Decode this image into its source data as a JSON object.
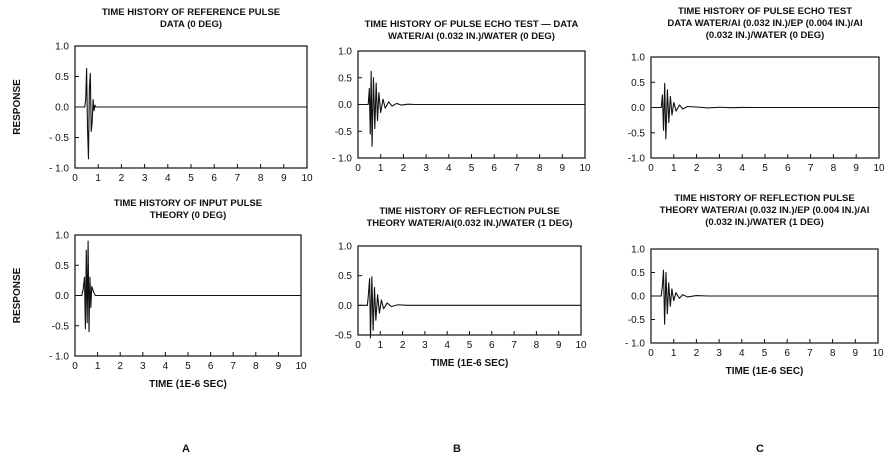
{
  "figure": {
    "panel_labels": [
      "A",
      "B",
      "C"
    ]
  },
  "chart_data": [
    {
      "id": "A-top",
      "type": "line",
      "title_lines": [
        "TIME HISTORY OF REFERENCE PULSE",
        "DATA (0 DEG)"
      ],
      "ylabel": "RESPONSE",
      "xlabel": "",
      "xlim": [
        0,
        10
      ],
      "ylim": [
        -1.0,
        1.0
      ],
      "x_ticks": [
        "0",
        "1",
        "2",
        "3",
        "4",
        "5",
        "6",
        "7",
        "8",
        "9",
        "10"
      ],
      "y_ticks": [
        "1.0",
        "0.5",
        "0.0",
        "- 0.5",
        "- 1.0"
      ],
      "y_tick_values": [
        1.0,
        0.5,
        0.0,
        -0.5,
        -1.0
      ],
      "grid": false,
      "series": [
        {
          "points": [
            [
              0,
              0
            ],
            [
              0.42,
              0
            ],
            [
              0.46,
              0.12
            ],
            [
              0.5,
              0.63
            ],
            [
              0.54,
              -0.35
            ],
            [
              0.58,
              -0.85
            ],
            [
              0.62,
              0.3
            ],
            [
              0.66,
              0.55
            ],
            [
              0.7,
              -0.4
            ],
            [
              0.74,
              -0.25
            ],
            [
              0.78,
              0.12
            ],
            [
              0.82,
              -0.06
            ],
            [
              0.86,
              0.03
            ],
            [
              0.9,
              0
            ],
            [
              10,
              0
            ]
          ]
        }
      ]
    },
    {
      "id": "A-bottom",
      "type": "line",
      "title_lines": [
        "TIME HISTORY OF INPUT PULSE",
        "THEORY (0 DEG)"
      ],
      "ylabel": "RESPONSE",
      "xlabel": "TIME (1E-6 SEC)",
      "xlim": [
        0,
        10
      ],
      "ylim": [
        -1.0,
        1.0
      ],
      "x_ticks": [
        "0",
        "1",
        "2",
        "3",
        "4",
        "5",
        "6",
        "7",
        "8",
        "9",
        "10"
      ],
      "y_ticks": [
        "1.0",
        "0.5",
        "0.0",
        "-0.5",
        "- 1.0"
      ],
      "y_tick_values": [
        1.0,
        0.5,
        0.0,
        -0.5,
        -1.0
      ],
      "grid": false,
      "series": [
        {
          "points": [
            [
              0,
              0
            ],
            [
              0.3,
              0
            ],
            [
              0.36,
              0.1
            ],
            [
              0.42,
              0.3
            ],
            [
              0.46,
              -0.55
            ],
            [
              0.5,
              0.75
            ],
            [
              0.54,
              -0.45
            ],
            [
              0.58,
              0.9
            ],
            [
              0.62,
              -0.6
            ],
            [
              0.66,
              0.3
            ],
            [
              0.7,
              -0.2
            ],
            [
              0.74,
              0.15
            ],
            [
              0.8,
              0.08
            ],
            [
              0.86,
              0.03
            ],
            [
              0.9,
              0
            ],
            [
              10,
              0
            ]
          ]
        }
      ]
    },
    {
      "id": "B-top",
      "type": "line",
      "title_lines": [
        "TIME HISTORY OF PULSE ECHO TEST — DATA",
        "WATER/AI (0.032 IN.)/WATER (0 DEG)"
      ],
      "ylabel": "",
      "xlabel": "",
      "xlim": [
        0,
        10
      ],
      "ylim": [
        -1.0,
        1.0
      ],
      "x_ticks": [
        "0",
        "1",
        "2",
        "3",
        "4",
        "5",
        "6",
        "7",
        "8",
        "9",
        "10"
      ],
      "y_ticks": [
        "1.0",
        "0.5",
        "0.0",
        "-0.5",
        "- 1.0"
      ],
      "y_tick_values": [
        1.0,
        0.5,
        0.0,
        -0.5,
        -1.0
      ],
      "grid": false,
      "series": [
        {
          "points": [
            [
              0,
              0
            ],
            [
              0.45,
              0
            ],
            [
              0.5,
              0.3
            ],
            [
              0.54,
              -0.55
            ],
            [
              0.58,
              0.62
            ],
            [
              0.62,
              -0.78
            ],
            [
              0.68,
              0.5
            ],
            [
              0.74,
              -0.45
            ],
            [
              0.8,
              0.4
            ],
            [
              0.86,
              -0.3
            ],
            [
              0.92,
              0.22
            ],
            [
              1.0,
              -0.15
            ],
            [
              1.1,
              0.1
            ],
            [
              1.2,
              -0.07
            ],
            [
              1.35,
              0.05
            ],
            [
              1.5,
              -0.03
            ],
            [
              1.7,
              0.02
            ],
            [
              1.9,
              -0.01
            ],
            [
              2.2,
              0.005
            ],
            [
              2.5,
              0
            ],
            [
              10,
              0
            ]
          ]
        }
      ]
    },
    {
      "id": "B-bottom",
      "type": "line",
      "title_lines": [
        "TIME HISTORY OF REFLECTION PULSE",
        "THEORY WATER/AI(0.032 IN.)/WATER (1 DEG)"
      ],
      "ylabel": "",
      "xlabel": "TIME (1E-6 SEC)",
      "xlim": [
        0,
        10
      ],
      "ylim": [
        -0.5,
        1.0
      ],
      "x_ticks": [
        "0",
        "1",
        "2",
        "3",
        "4",
        "5",
        "6",
        "7",
        "8",
        "9",
        "10"
      ],
      "y_ticks": [
        "1.0",
        "0.5",
        "0.0",
        "-0.5"
      ],
      "y_tick_values": [
        1.0,
        0.5,
        0.0,
        -0.5
      ],
      "grid": false,
      "series": [
        {
          "points": [
            [
              0,
              0
            ],
            [
              0.42,
              0
            ],
            [
              0.46,
              0.15
            ],
            [
              0.52,
              0.45
            ],
            [
              0.56,
              -0.55
            ],
            [
              0.62,
              0.48
            ],
            [
              0.68,
              -0.42
            ],
            [
              0.74,
              0.3
            ],
            [
              0.8,
              -0.25
            ],
            [
              0.88,
              0.18
            ],
            [
              0.96,
              -0.13
            ],
            [
              1.05,
              0.09
            ],
            [
              1.15,
              -0.06
            ],
            [
              1.3,
              0.04
            ],
            [
              1.5,
              -0.02
            ],
            [
              1.8,
              0.01
            ],
            [
              2.2,
              0
            ],
            [
              10,
              0
            ]
          ]
        }
      ]
    },
    {
      "id": "C-top",
      "type": "line",
      "title_lines": [
        "TIME HISTORY OF PULSE ECHO TEST",
        "DATA WATER/AI (0.032 IN.)/EP (0.004 IN.)/AI",
        "(0.032 IN.)/WATER (0 DEG)"
      ],
      "ylabel": "",
      "xlabel": "",
      "xlim": [
        0,
        10
      ],
      "ylim": [
        -1.0,
        1.0
      ],
      "x_ticks": [
        "0",
        "1",
        "2",
        "3",
        "4",
        "5",
        "6",
        "7",
        "8",
        "9",
        "10"
      ],
      "y_ticks": [
        "1.0",
        "0.5",
        "0.0",
        "-0.5",
        "-1.0"
      ],
      "y_tick_values": [
        1.0,
        0.5,
        0.0,
        -0.5,
        -1.0
      ],
      "grid": false,
      "series": [
        {
          "points": [
            [
              0,
              0
            ],
            [
              0.45,
              0
            ],
            [
              0.5,
              0.25
            ],
            [
              0.55,
              -0.45
            ],
            [
              0.6,
              0.48
            ],
            [
              0.65,
              -0.62
            ],
            [
              0.72,
              0.35
            ],
            [
              0.78,
              -0.3
            ],
            [
              0.85,
              0.22
            ],
            [
              0.92,
              -0.15
            ],
            [
              1.0,
              0.1
            ],
            [
              1.1,
              -0.07
            ],
            [
              1.25,
              0.05
            ],
            [
              1.4,
              -0.03
            ],
            [
              1.6,
              0.02
            ],
            [
              2.0,
              0.01
            ],
            [
              2.5,
              -0.008
            ],
            [
              3.0,
              0.005
            ],
            [
              3.5,
              -0.004
            ],
            [
              4.0,
              0.002
            ],
            [
              4.5,
              0
            ],
            [
              10,
              0
            ]
          ]
        }
      ]
    },
    {
      "id": "C-bottom",
      "type": "line",
      "title_lines": [
        "TIME HISTORY OF REFLECTION PULSE",
        "THEORY WATER/AI (0.032 IN.)/EP (0.004 IN.)/AI",
        "(0.032 IN.)/WATER (1 DEG)"
      ],
      "ylabel": "",
      "xlabel": "TIME (1E-6 SEC)",
      "xlim": [
        0,
        10
      ],
      "ylim": [
        -1.0,
        1.0
      ],
      "x_ticks": [
        "0",
        "1",
        "2",
        "3",
        "4",
        "5",
        "6",
        "7",
        "8",
        "9",
        "10"
      ],
      "y_ticks": [
        "1.0",
        "0.5",
        "0.0",
        "-0.5",
        "- 1.0"
      ],
      "y_tick_values": [
        1.0,
        0.5,
        0.0,
        -0.5,
        -1.0
      ],
      "grid": false,
      "series": [
        {
          "points": [
            [
              0,
              0
            ],
            [
              0.45,
              0
            ],
            [
              0.5,
              0.2
            ],
            [
              0.55,
              0.55
            ],
            [
              0.6,
              -0.6
            ],
            [
              0.66,
              0.5
            ],
            [
              0.72,
              -0.38
            ],
            [
              0.78,
              0.28
            ],
            [
              0.85,
              -0.22
            ],
            [
              0.92,
              0.15
            ],
            [
              1.0,
              -0.1
            ],
            [
              1.1,
              0.07
            ],
            [
              1.25,
              -0.05
            ],
            [
              1.4,
              0.03
            ],
            [
              1.6,
              -0.02
            ],
            [
              2.0,
              0.01
            ],
            [
              2.5,
              0
            ],
            [
              10,
              0
            ]
          ]
        }
      ]
    }
  ]
}
